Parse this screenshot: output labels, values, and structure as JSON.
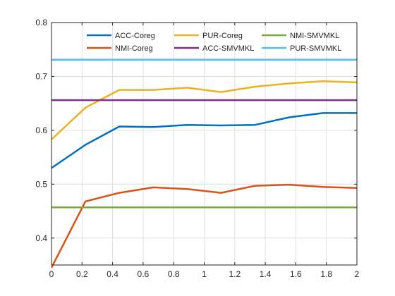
{
  "chart_data": {
    "type": "line",
    "title": "",
    "xlabel": "",
    "ylabel": "",
    "xlim": [
      0,
      2
    ],
    "ylim": [
      0.35,
      0.8
    ],
    "grid": true,
    "xticks": [
      0,
      0.2,
      0.4,
      0.6,
      0.8,
      1,
      1.2,
      1.4,
      1.6,
      1.8,
      2
    ],
    "xtick_labels": [
      "0",
      "0.2",
      "0.4",
      "0.6",
      "0.8",
      "1",
      "1.2",
      "1.4",
      "1.6",
      "1.8",
      "2"
    ],
    "yticks": [
      0.4,
      0.5,
      0.6,
      0.7,
      0.8
    ],
    "ytick_labels": [
      "0.4",
      "0.5",
      "0.6",
      "0.7",
      "0.8"
    ],
    "legend_position": "top",
    "series": [
      {
        "name": "ACC-Coreg",
        "color": "#0072BD",
        "style": "line",
        "x": [
          0,
          0.222,
          0.444,
          0.667,
          0.889,
          1.111,
          1.333,
          1.556,
          1.778,
          2.0
        ],
        "y": [
          0.53,
          0.573,
          0.607,
          0.606,
          0.61,
          0.609,
          0.61,
          0.624,
          0.632,
          0.632
        ]
      },
      {
        "name": "NMI-Coreg",
        "color": "#D95319",
        "style": "line",
        "x": [
          0,
          0.222,
          0.444,
          0.667,
          0.889,
          1.111,
          1.333,
          1.556,
          1.778,
          2.0
        ],
        "y": [
          0.345,
          0.468,
          0.484,
          0.494,
          0.491,
          0.484,
          0.497,
          0.499,
          0.495,
          0.493
        ]
      },
      {
        "name": "PUR-Coreg",
        "color": "#EDB120",
        "style": "line",
        "x": [
          0,
          0.222,
          0.444,
          0.667,
          0.889,
          1.111,
          1.333,
          1.556,
          1.778,
          2.0
        ],
        "y": [
          0.583,
          0.642,
          0.675,
          0.675,
          0.679,
          0.671,
          0.681,
          0.687,
          0.691,
          0.689
        ]
      },
      {
        "name": "ACC-SMVMKL",
        "color": "#7E2F8E",
        "style": "hline",
        "x": [
          0,
          2
        ],
        "y": [
          0.656,
          0.656
        ]
      },
      {
        "name": "NMI-SMVMKL",
        "color": "#77AC30",
        "style": "hline",
        "x": [
          0,
          2
        ],
        "y": [
          0.457,
          0.457
        ]
      },
      {
        "name": "PUR-SMVMKL",
        "color": "#4DBEEE",
        "style": "hline",
        "x": [
          0,
          2
        ],
        "y": [
          0.731,
          0.731
        ]
      }
    ]
  }
}
